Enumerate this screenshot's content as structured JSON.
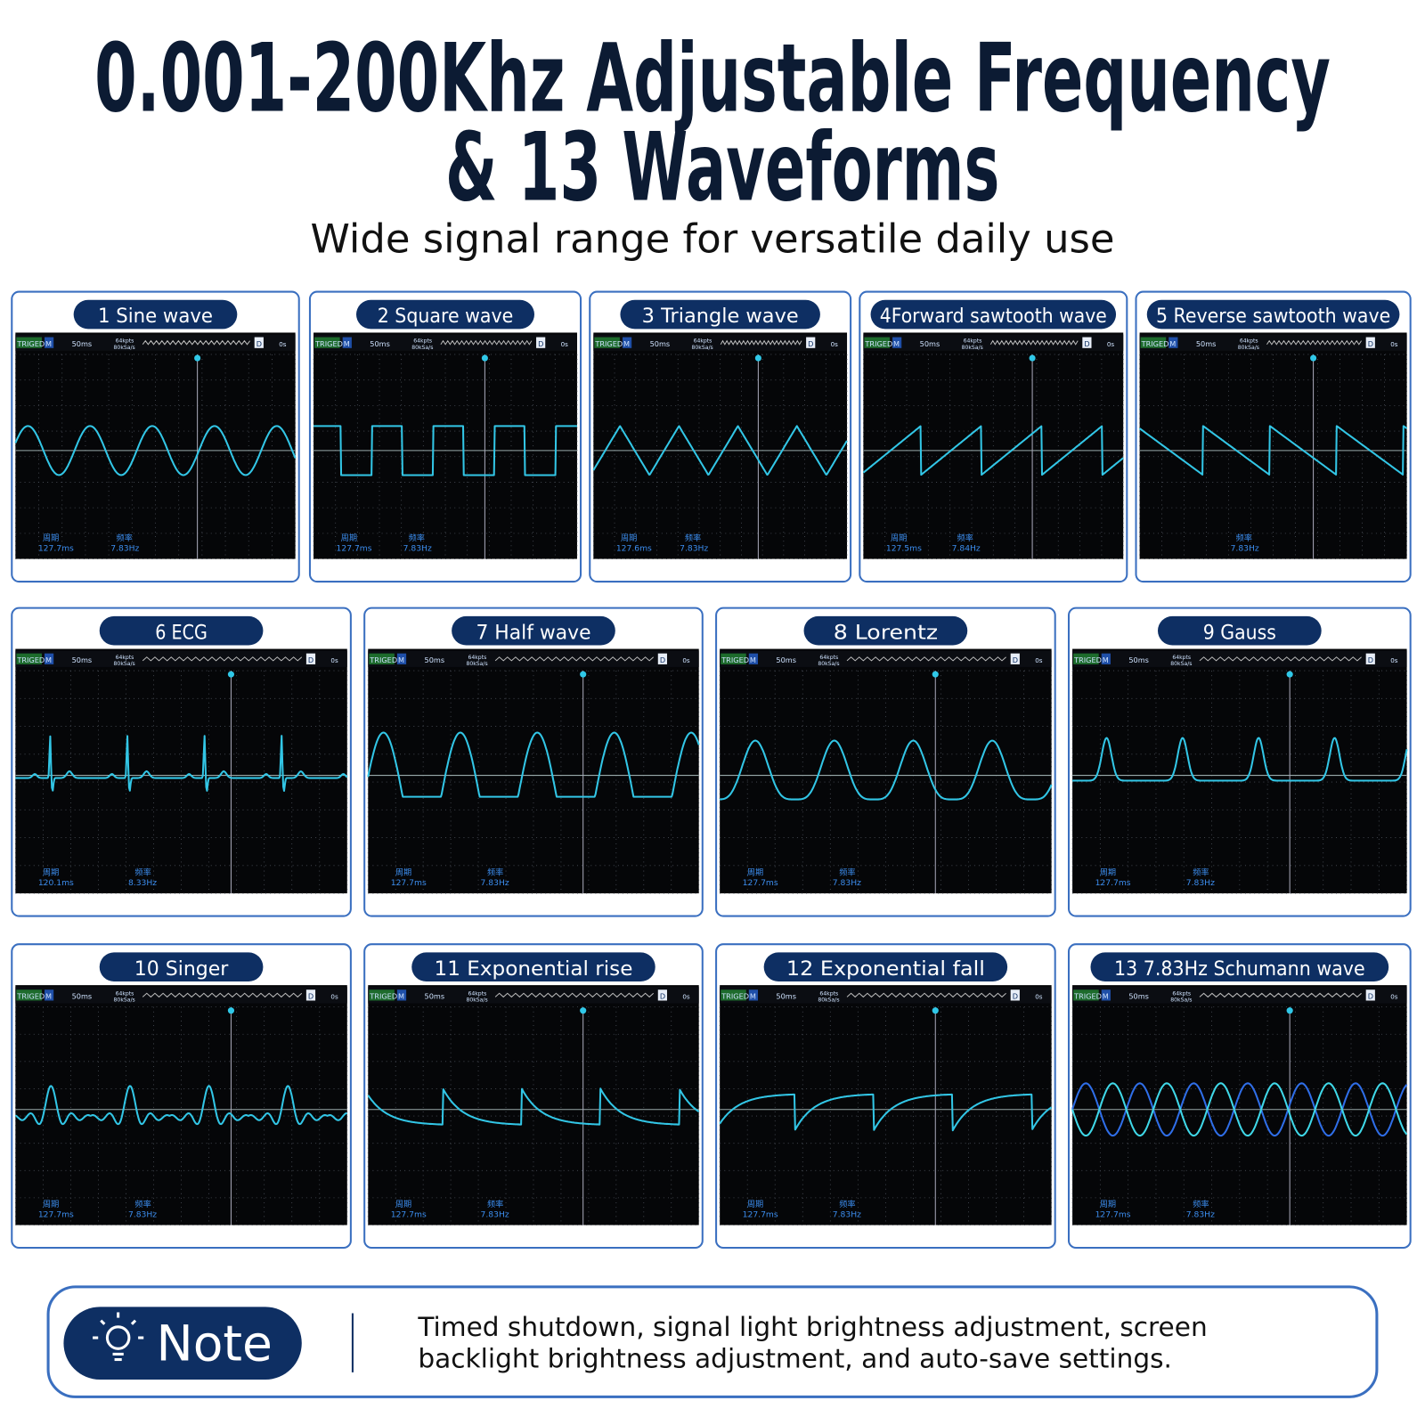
{
  "header": {
    "title_lines": [
      "0.001-200Khz Adjustable Frequency",
      "& 13 Waveforms"
    ],
    "subtitle": "Wide signal range for versatile daily use"
  },
  "screen": {
    "trigger": "TRIGED",
    "mode": "M",
    "timebase": "50ms",
    "depth": "64kpts",
    "rate": "80kSa/s",
    "coupling": "D",
    "offset": "0s",
    "period_label": "周期",
    "frequency_label": "频率"
  },
  "panels": [
    {
      "label": "1 Sine wave",
      "period": "127.7ms",
      "frequency": "7.83Hz"
    },
    {
      "label": "2 Square wave",
      "period": "127.7ms",
      "frequency": "7.83Hz"
    },
    {
      "label": "3 Triangle wave",
      "period": "127.6ms",
      "frequency": "7.83Hz"
    },
    {
      "label": "4Forward sawtooth wave",
      "period": "127.5ms",
      "frequency": "7.84Hz"
    },
    {
      "label": "5 Reverse sawtooth wave",
      "frequency": "7.83Hz"
    },
    {
      "label": "6 ECG",
      "period": "120.1ms",
      "frequency": "8.33Hz"
    },
    {
      "label": "7 Half wave",
      "period": "127.7ms",
      "frequency": "7.83Hz"
    },
    {
      "label": "8  Lorentz",
      "period": "127.7ms",
      "frequency": "7.83Hz"
    },
    {
      "label": "9 Gauss",
      "period": "127.7ms",
      "frequency": "7.83Hz"
    },
    {
      "label": "10 Singer",
      "period": "127.7ms",
      "frequency": "7.83Hz"
    },
    {
      "label": "11 Exponential rise",
      "period": "127.7ms",
      "frequency": "7.83Hz"
    },
    {
      "label": "12 Exponential fall",
      "period": "127.7ms",
      "frequency": "7.83Hz"
    },
    {
      "label": "13  7.83Hz Schumann wave",
      "period": "127.7ms",
      "frequency": "7.83Hz"
    }
  ],
  "note": {
    "badge": "Note",
    "text_lines": [
      "Timed shutdown, signal light brightness adjustment, screen",
      "backlight brightness adjustment, and auto-save settings."
    ]
  }
}
